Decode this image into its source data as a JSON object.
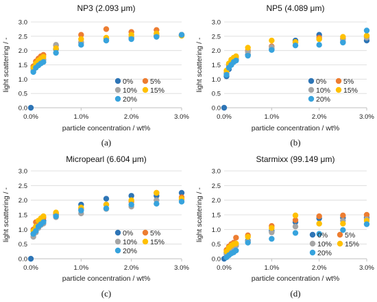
{
  "series_colors": {
    "0%": "#2E75B6",
    "5%": "#ED7D31",
    "10%": "#A5A5A5",
    "15%": "#FFC000",
    "20%": "#37A3DD"
  },
  "chart_data": [
    {
      "type": "scatter",
      "title": "NP3 (2.093 μm)",
      "panel_label": "(a)",
      "xlabel": "particle concentration / wt%",
      "ylabel": "light scattering / -",
      "xlim": [
        0,
        3
      ],
      "ylim": [
        0,
        3
      ],
      "xticks": [
        "0.0%",
        "1.0%",
        "2.0%",
        "3.0%"
      ],
      "yticks": [
        "0.0",
        "0.5",
        "1.0",
        "1.5",
        "2.0",
        "2.5",
        "3.0"
      ],
      "grid": true,
      "legend": [
        "0%",
        "5%",
        "10%",
        "15%",
        "20%"
      ],
      "legend_position": "bottom-right",
      "series": [
        {
          "name": "0%",
          "x": [
            0,
            0.05,
            0.1,
            0.15,
            0.2,
            0.25,
            0.5,
            1.0,
            1.5,
            2.0,
            2.5,
            3.0
          ],
          "y": [
            0,
            1.38,
            1.5,
            1.58,
            1.63,
            1.68,
            2.05,
            2.28,
            2.42,
            2.45,
            2.52,
            2.55
          ]
        },
        {
          "name": "5%",
          "x": [
            0.05,
            0.1,
            0.15,
            0.2,
            0.25,
            0.5,
            1.0,
            1.5,
            2.0,
            2.5,
            3.0
          ],
          "y": [
            1.45,
            1.62,
            1.72,
            1.8,
            1.85,
            2.18,
            2.55,
            2.75,
            2.65,
            2.72,
            2.55
          ]
        },
        {
          "name": "10%",
          "x": [
            0.05,
            0.1,
            0.15,
            0.2,
            0.25,
            0.5,
            1.0,
            1.5,
            2.0,
            2.5,
            3.0
          ],
          "y": [
            1.3,
            1.45,
            1.55,
            1.62,
            1.68,
            2.2,
            2.3,
            2.35,
            2.45,
            2.5,
            2.52
          ]
        },
        {
          "name": "15%",
          "x": [
            0.05,
            0.1,
            0.15,
            0.2,
            0.25,
            0.5,
            1.0,
            1.5,
            2.0,
            2.5,
            3.0
          ],
          "y": [
            1.4,
            1.55,
            1.65,
            1.72,
            1.78,
            2.08,
            2.4,
            2.45,
            2.55,
            2.6,
            2.52
          ]
        },
        {
          "name": "20%",
          "x": [
            0.05,
            0.1,
            0.15,
            0.2,
            0.25,
            0.5,
            1.0,
            1.5,
            2.0,
            2.5,
            3.0
          ],
          "y": [
            1.25,
            1.4,
            1.48,
            1.55,
            1.6,
            1.92,
            2.2,
            2.35,
            2.4,
            2.48,
            2.55
          ]
        }
      ]
    },
    {
      "type": "scatter",
      "title": "NP5 (4.089 μm)",
      "panel_label": "(b)",
      "xlabel": "particle concentration / wt%",
      "ylabel": "light scattering / -",
      "xlim": [
        0,
        3
      ],
      "ylim": [
        0,
        3
      ],
      "xticks": [
        "0.0%",
        "1.0%",
        "2.0%",
        "3.0%"
      ],
      "yticks": [
        "0.0",
        "0.5",
        "1.0",
        "1.5",
        "2.0",
        "2.5",
        "3.0"
      ],
      "grid": true,
      "legend": [
        "0%",
        "5%",
        "10%",
        "15%",
        "20%"
      ],
      "legend_position": "bottom-right",
      "series": [
        {
          "name": "0%",
          "x": [
            0,
            0.05,
            0.1,
            0.15,
            0.2,
            0.25,
            0.5,
            1.0,
            1.5,
            2.0,
            2.5,
            3.0
          ],
          "y": [
            0,
            1.1,
            1.35,
            1.5,
            1.6,
            1.68,
            1.85,
            2.05,
            2.35,
            2.55,
            2.3,
            2.35
          ]
        },
        {
          "name": "5%",
          "x": [
            0.05,
            0.1,
            0.15,
            0.2,
            0.25,
            0.5,
            1.0,
            1.5,
            2.0,
            2.5,
            3.0
          ],
          "y": [
            1.2,
            1.5,
            1.62,
            1.7,
            1.78,
            2.0,
            2.15,
            2.3,
            2.45,
            2.42,
            2.5
          ]
        },
        {
          "name": "10%",
          "x": [
            0.05,
            0.1,
            0.15,
            0.2,
            0.25,
            0.5,
            1.0,
            1.5,
            2.0,
            2.5,
            3.0
          ],
          "y": [
            1.22,
            1.42,
            1.55,
            1.65,
            1.72,
            1.95,
            2.12,
            2.28,
            2.4,
            2.38,
            2.45
          ]
        },
        {
          "name": "15%",
          "x": [
            0.05,
            0.1,
            0.15,
            0.2,
            0.25,
            0.5,
            1.0,
            1.5,
            2.0,
            2.5,
            3.0
          ],
          "y": [
            1.3,
            1.55,
            1.68,
            1.75,
            1.8,
            2.1,
            2.35,
            2.3,
            2.4,
            2.48,
            2.52
          ]
        },
        {
          "name": "20%",
          "x": [
            0.05,
            0.1,
            0.15,
            0.2,
            0.25,
            0.5,
            1.0,
            1.5,
            2.0,
            2.5,
            3.0
          ],
          "y": [
            1.15,
            1.4,
            1.5,
            1.6,
            1.65,
            1.82,
            2.02,
            2.18,
            2.2,
            2.28,
            2.7
          ]
        }
      ]
    },
    {
      "type": "scatter",
      "title": "Micropearl (6.604 μm)",
      "panel_label": "(c)",
      "xlabel": "particle concentration / wt%",
      "ylabel": "light scattering / -",
      "xlim": [
        0,
        3
      ],
      "ylim": [
        0,
        3
      ],
      "xticks": [
        "0.0%",
        "1.0%",
        "2.0%",
        "3.0%"
      ],
      "yticks": [
        "0.0",
        "0.5",
        "1.0",
        "1.5",
        "2.0",
        "2.5",
        "3.0"
      ],
      "grid": true,
      "legend": [
        "0%",
        "5%",
        "10%",
        "15%",
        "20%"
      ],
      "legend_position": "bottom-right",
      "series": [
        {
          "name": "0%",
          "x": [
            0,
            0.05,
            0.1,
            0.15,
            0.2,
            0.25,
            0.5,
            1.0,
            1.5,
            2.0,
            2.5,
            3.0
          ],
          "y": [
            0,
            0.85,
            1.0,
            1.15,
            1.25,
            1.3,
            1.5,
            1.85,
            2.05,
            2.15,
            2.15,
            2.25
          ]
        },
        {
          "name": "5%",
          "x": [
            0.05,
            0.1,
            0.15,
            0.2,
            0.25,
            0.5,
            1.0,
            1.5,
            2.0,
            2.5,
            3.0
          ],
          "y": [
            1.0,
            1.25,
            1.3,
            1.35,
            1.4,
            1.55,
            1.7,
            1.85,
            1.95,
            2.25,
            2.1
          ]
        },
        {
          "name": "10%",
          "x": [
            0.05,
            0.1,
            0.15,
            0.2,
            0.25,
            0.5,
            1.0,
            1.5,
            2.0,
            2.5,
            3.0
          ],
          "y": [
            0.75,
            0.9,
            1.05,
            1.15,
            1.2,
            1.42,
            1.55,
            1.7,
            1.78,
            2.0,
            2.02
          ]
        },
        {
          "name": "15%",
          "x": [
            0.05,
            0.1,
            0.15,
            0.2,
            0.25,
            0.5,
            1.0,
            1.5,
            2.0,
            2.5,
            3.0
          ],
          "y": [
            0.95,
            1.1,
            1.3,
            1.38,
            1.45,
            1.58,
            1.75,
            1.85,
            2.0,
            2.25,
            2.05
          ]
        },
        {
          "name": "20%",
          "x": [
            0.05,
            0.1,
            0.15,
            0.2,
            0.25,
            0.5,
            1.0,
            1.5,
            2.0,
            2.5,
            3.0
          ],
          "y": [
            0.85,
            0.95,
            1.1,
            1.18,
            1.25,
            1.45,
            1.65,
            1.72,
            1.85,
            1.88,
            1.95
          ]
        }
      ]
    },
    {
      "type": "scatter",
      "title": "Starmixx (99.149 μm)",
      "panel_label": "(d)",
      "xlabel": "particle concentration / wt%",
      "ylabel": "light scattering / -",
      "xlim": [
        0,
        3
      ],
      "ylim": [
        0,
        3
      ],
      "xticks": [
        "0.0%",
        "1.0%",
        "2.0%",
        "3.0%"
      ],
      "yticks": [
        "0.0",
        "0.5",
        "1.0",
        "1.5",
        "2.0",
        "2.5",
        "3.0"
      ],
      "grid": true,
      "legend": [
        "0%",
        "5%",
        "10%",
        "15%",
        "20%"
      ],
      "legend_position": "bottom-right",
      "series": [
        {
          "name": "0%",
          "x": [
            0,
            0.05,
            0.1,
            0.15,
            0.2,
            0.25,
            0.5,
            1.0,
            1.5,
            2.0,
            2.5,
            3.0
          ],
          "y": [
            0,
            0.2,
            0.3,
            0.38,
            0.42,
            0.45,
            0.62,
            0.95,
            1.25,
            1.38,
            1.4,
            1.4
          ]
        },
        {
          "name": "5%",
          "x": [
            0.05,
            0.1,
            0.15,
            0.2,
            0.25,
            0.5,
            1.0,
            1.5,
            2.0,
            2.5,
            3.0
          ],
          "y": [
            0.3,
            0.42,
            0.5,
            0.55,
            0.72,
            0.8,
            1.12,
            1.32,
            1.45,
            1.48,
            1.5
          ]
        },
        {
          "name": "10%",
          "x": [
            0.05,
            0.1,
            0.15,
            0.2,
            0.25,
            0.5,
            1.0,
            1.5,
            2.0,
            2.5,
            3.0
          ],
          "y": [
            0.15,
            0.25,
            0.32,
            0.38,
            0.45,
            0.58,
            0.9,
            1.1,
            1.2,
            1.3,
            1.35
          ]
        },
        {
          "name": "15%",
          "x": [
            0.05,
            0.1,
            0.15,
            0.2,
            0.25,
            0.5,
            1.0,
            1.5,
            2.0,
            2.5,
            3.0
          ],
          "y": [
            0.25,
            0.38,
            0.45,
            0.5,
            0.52,
            0.75,
            1.05,
            1.48,
            1.2,
            1.2,
            1.3
          ]
        },
        {
          "name": "20%",
          "x": [
            0.05,
            0.1,
            0.15,
            0.2,
            0.25,
            0.5,
            1.0,
            1.5,
            2.0,
            2.5,
            3.0
          ],
          "y": [
            0.05,
            0.12,
            0.18,
            0.22,
            0.28,
            0.55,
            0.68,
            0.88,
            0.85,
            0.98,
            1.18
          ]
        }
      ]
    }
  ]
}
